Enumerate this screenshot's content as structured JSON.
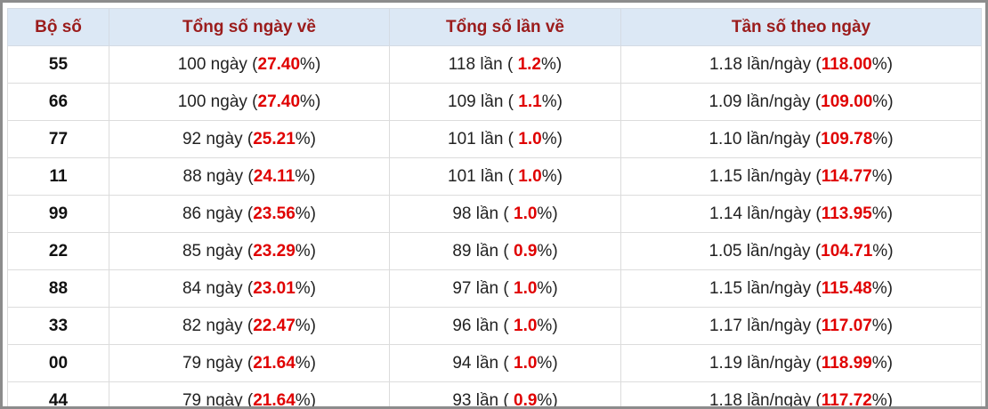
{
  "table": {
    "header": [
      "Bộ số",
      "Tổng số ngày về",
      "Tổng số lần về",
      "Tần số theo ngày"
    ],
    "rows": [
      [
        "55",
        [
          "100 ngày (",
          "27.40",
          "%)"
        ],
        [
          "118 lần ( ",
          "1.2",
          "%)"
        ],
        [
          "1.18 lần/ngày (",
          "118.00",
          "%)"
        ]
      ],
      [
        "66",
        [
          "100 ngày (",
          "27.40",
          "%)"
        ],
        [
          "109 lần ( ",
          "1.1",
          "%)"
        ],
        [
          "1.09 lần/ngày (",
          "109.00",
          "%)"
        ]
      ],
      [
        "77",
        [
          "92 ngày (",
          "25.21",
          "%)"
        ],
        [
          "101 lần ( ",
          "1.0",
          "%)"
        ],
        [
          "1.10 lần/ngày (",
          "109.78",
          "%)"
        ]
      ],
      [
        "11",
        [
          "88 ngày (",
          "24.11",
          "%)"
        ],
        [
          "101 lần ( ",
          "1.0",
          "%)"
        ],
        [
          "1.15 lần/ngày (",
          "114.77",
          "%)"
        ]
      ],
      [
        "99",
        [
          "86 ngày (",
          "23.56",
          "%)"
        ],
        [
          "98 lần ( ",
          "1.0",
          "%)"
        ],
        [
          "1.14 lần/ngày (",
          "113.95",
          "%)"
        ]
      ],
      [
        "22",
        [
          "85 ngày (",
          "23.29",
          "%)"
        ],
        [
          "89 lần ( ",
          "0.9",
          "%)"
        ],
        [
          "1.05 lần/ngày (",
          "104.71",
          "%)"
        ]
      ],
      [
        "88",
        [
          "84 ngày (",
          "23.01",
          "%)"
        ],
        [
          "97 lần ( ",
          "1.0",
          "%)"
        ],
        [
          "1.15 lần/ngày (",
          "115.48",
          "%)"
        ]
      ],
      [
        "33",
        [
          "82 ngày (",
          "22.47",
          "%)"
        ],
        [
          "96 lần ( ",
          "1.0",
          "%)"
        ],
        [
          "1.17 lần/ngày (",
          "117.07",
          "%)"
        ]
      ],
      [
        "00",
        [
          "79 ngày (",
          "21.64",
          "%)"
        ],
        [
          "94 lần ( ",
          "1.0",
          "%)"
        ],
        [
          "1.19 lần/ngày (",
          "118.99",
          "%)"
        ]
      ],
      [
        "44",
        [
          "79 ngày (",
          "21.64",
          "%)"
        ],
        [
          "93 lần ( ",
          "0.9",
          "%)"
        ],
        [
          "1.18 lần/ngày (",
          "117.72",
          "%)"
        ]
      ]
    ]
  }
}
